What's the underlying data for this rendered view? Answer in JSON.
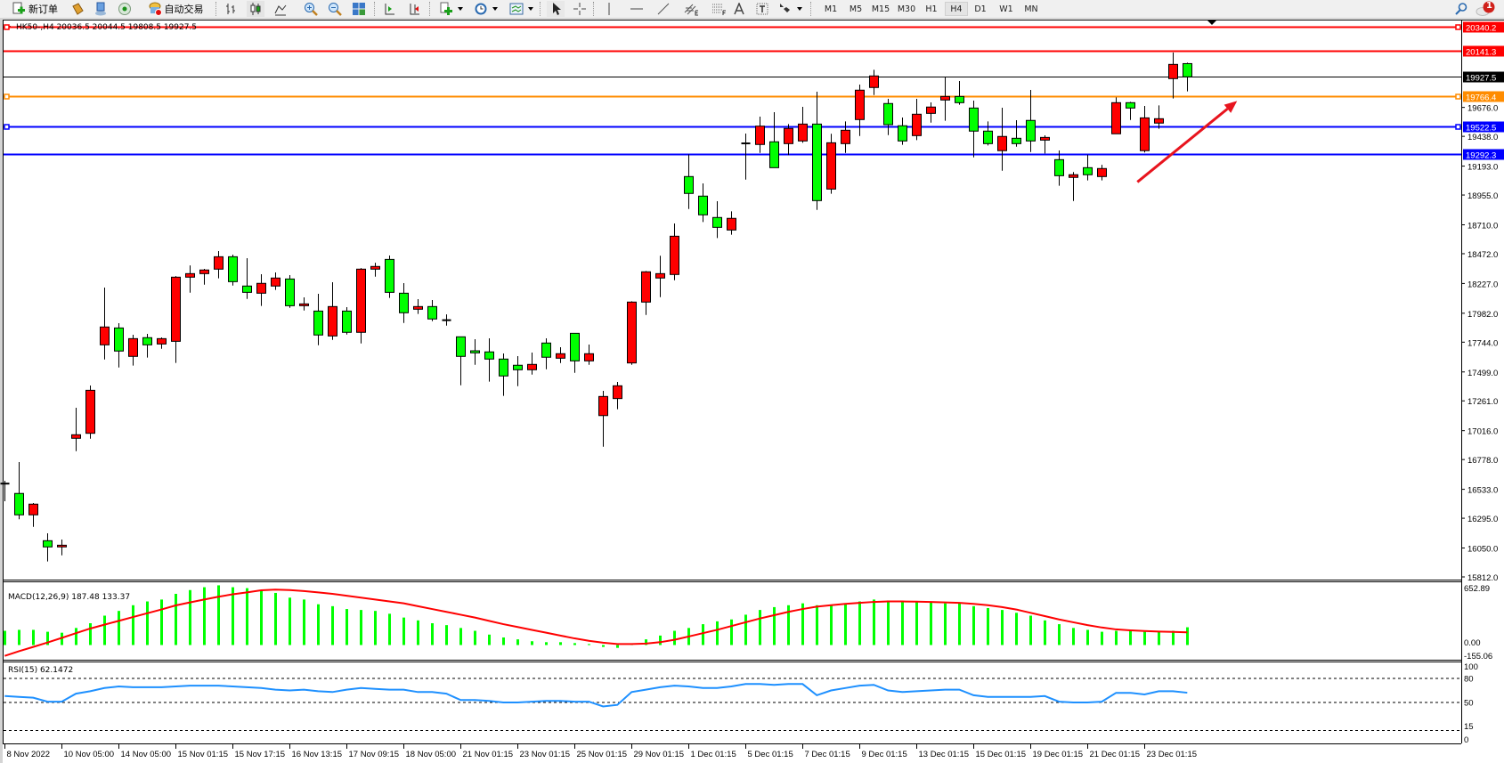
{
  "toolbar": {
    "new_order_label": "新订单",
    "auto_trading_label": "自动交易",
    "icons": [
      "new-order-icon",
      "market-watch-icon",
      "data-window-icon",
      "signals-icon",
      "auto-trading-icon",
      "bar-chart-icon",
      "candlestick-icon",
      "line-chart-icon",
      "zoom-in-icon",
      "zoom-out-icon",
      "tile-windows-icon",
      "auto-scroll-icon",
      "chart-shift-icon",
      "indicators-icon",
      "periods-icon",
      "templates-icon",
      "cursor-icon",
      "crosshair-icon",
      "vertical-line-icon",
      "horizontal-line-icon",
      "trendline-icon",
      "equidistant-channel-icon",
      "fibonacci-icon",
      "text-icon",
      "text-label-icon",
      "arrows-icon",
      "search-icon",
      "notification-icon"
    ],
    "timeframes": [
      "M1",
      "M5",
      "M15",
      "M30",
      "H1",
      "H4",
      "D1",
      "W1",
      "MN"
    ],
    "active_timeframe": "H4",
    "notification_count": "1"
  },
  "chart": {
    "header": "HK50-,H4  20036.5 20044.5 19808.5 19927.5",
    "colors": {
      "bull": "#ff0000",
      "bear": "#00ff00",
      "wick": "#000000",
      "macd_hist": "#00ff00",
      "macd_signal": "#ff0000",
      "rsi": "#1e90ff",
      "arrow": "#e8141e"
    },
    "price_ticks": [
      "19676.0",
      "19438.0",
      "19193.0",
      "18955.0",
      "18710.0",
      "18472.0",
      "18227.0",
      "17982.0",
      "17744.0",
      "17499.0",
      "17261.0",
      "17016.0",
      "16778.0",
      "16533.0",
      "16295.0",
      "16050.0",
      "15812.0"
    ],
    "price_range": [
      15812.0,
      20340.2
    ],
    "horizontal_lines": [
      {
        "price": "20340.2",
        "color": "#ff0000",
        "markers": "both"
      },
      {
        "price": "20141.3",
        "color": "#ff0000",
        "markers": "none"
      },
      {
        "price": "19927.5",
        "color": "#000000",
        "markers": "none",
        "kind": "bid"
      },
      {
        "price": "19766.4",
        "color": "#ff8c00",
        "markers": "both"
      },
      {
        "price": "19522.5",
        "color": "#0000ff",
        "markers": "both"
      },
      {
        "price": "19292.3",
        "color": "#0000ff",
        "markers": "none"
      }
    ],
    "annotation_arrow": {
      "from_bar": 79.5,
      "from_price": 19062,
      "to_bar": 86.5,
      "to_price": 19729,
      "color": "#e8141e"
    },
    "time_labels": [
      {
        "bar": 0,
        "label": "8 Nov 2022"
      },
      {
        "bar": 4,
        "label": "10 Nov 05:00"
      },
      {
        "bar": 8,
        "label": "14 Nov 05:00"
      },
      {
        "bar": 12,
        "label": "15 Nov 01:15"
      },
      {
        "bar": 16,
        "label": "15 Nov 17:15"
      },
      {
        "bar": 20,
        "label": "16 Nov 13:15"
      },
      {
        "bar": 24,
        "label": "17 Nov 09:15"
      },
      {
        "bar": 28,
        "label": "18 Nov 05:00"
      },
      {
        "bar": 32,
        "label": "21 Nov 01:15"
      },
      {
        "bar": 36,
        "label": "23 Nov 01:15"
      },
      {
        "bar": 40,
        "label": "25 Nov 01:15"
      },
      {
        "bar": 44,
        "label": "29 Nov 01:15"
      },
      {
        "bar": 48,
        "label": "1 Dec 01:15"
      },
      {
        "bar": 52,
        "label": "5 Dec 01:15"
      },
      {
        "bar": 56,
        "label": "7 Dec 01:15"
      },
      {
        "bar": 60,
        "label": "9 Dec 01:15"
      },
      {
        "bar": 64,
        "label": "13 Dec 01:15"
      },
      {
        "bar": 68,
        "label": "15 Dec 01:15"
      },
      {
        "bar": 72,
        "label": "19 Dec 01:15"
      },
      {
        "bar": 76,
        "label": "21 Dec 01:15"
      },
      {
        "bar": 80,
        "label": "23 Dec 01:15"
      }
    ]
  },
  "chart_data": [
    {
      "type": "candlestick",
      "symbol": "HK50-",
      "timeframe": "H4",
      "ylim": [
        15812.0,
        20340.2
      ],
      "candles": [
        [
          16580,
          16603,
          16435,
          16576
        ],
        [
          16499,
          16757,
          16286,
          16323
        ],
        [
          16323,
          16420,
          16224,
          16411
        ],
        [
          16110,
          16171,
          15939,
          16059
        ],
        [
          16059,
          16120,
          15990,
          16073
        ],
        [
          16953,
          17204,
          16847,
          16982
        ],
        [
          16994,
          17387,
          16950,
          17348
        ],
        [
          17722,
          18193,
          17602,
          17869
        ],
        [
          17861,
          17900,
          17536,
          17671
        ],
        [
          17627,
          17805,
          17551,
          17773
        ],
        [
          17781,
          17812,
          17617,
          17722
        ],
        [
          17729,
          17783,
          17690,
          17773
        ],
        [
          17751,
          18288,
          17573,
          18279
        ],
        [
          18279,
          18376,
          18151,
          18308
        ],
        [
          18308,
          18347,
          18217,
          18338
        ],
        [
          18345,
          18494,
          18269,
          18447
        ],
        [
          18447,
          18464,
          18210,
          18242
        ],
        [
          18206,
          18435,
          18100,
          18154
        ],
        [
          18147,
          18303,
          18042,
          18228
        ],
        [
          18206,
          18318,
          18174,
          18272
        ],
        [
          18264,
          18296,
          18027,
          18044
        ],
        [
          18044,
          18113,
          18005,
          18059
        ],
        [
          18000,
          18142,
          17719,
          17803
        ],
        [
          17795,
          18237,
          17763,
          18037
        ],
        [
          18000,
          18032,
          17807,
          17825
        ],
        [
          17825,
          18354,
          17734,
          18345
        ],
        [
          18345,
          18398,
          18283,
          18367
        ],
        [
          18425,
          18457,
          18108,
          18154
        ],
        [
          18147,
          18230,
          17902,
          17986
        ],
        [
          18015,
          18098,
          17976,
          18037
        ],
        [
          18037,
          18091,
          17917,
          17935
        ],
        [
          17925,
          17973,
          17880,
          17924
        ],
        [
          17788,
          17788,
          17389,
          17627
        ],
        [
          17673,
          17768,
          17558,
          17656
        ],
        [
          17664,
          17776,
          17419,
          17605
        ],
        [
          17605,
          17651,
          17302,
          17466
        ],
        [
          17554,
          17629,
          17382,
          17517
        ],
        [
          17517,
          17658,
          17477,
          17561
        ],
        [
          17737,
          17776,
          17521,
          17620
        ],
        [
          17612,
          17702,
          17572,
          17649
        ],
        [
          17817,
          17817,
          17492,
          17590
        ],
        [
          17590,
          17724,
          17558,
          17649
        ],
        [
          17140,
          17343,
          16884,
          17297
        ],
        [
          17280,
          17417,
          17192,
          17385
        ],
        [
          17573,
          18081,
          17558,
          18074
        ],
        [
          18074,
          18330,
          17968,
          18323
        ],
        [
          18272,
          18455,
          18115,
          18308
        ],
        [
          18301,
          18721,
          18254,
          18616
        ],
        [
          19107,
          19290,
          18840,
          18968
        ],
        [
          18946,
          19051,
          18733,
          18792
        ],
        [
          18770,
          18904,
          18601,
          18689
        ],
        [
          18667,
          18821,
          18628,
          18763
        ],
        [
          19380,
          19461,
          19082,
          19378
        ],
        [
          19371,
          19600,
          19302,
          19522
        ],
        [
          19393,
          19637,
          19180,
          19180
        ],
        [
          19378,
          19539,
          19283,
          19503
        ],
        [
          19400,
          19681,
          19385,
          19539
        ],
        [
          19539,
          19805,
          18833,
          18909
        ],
        [
          19004,
          19459,
          18965,
          19385
        ],
        [
          19378,
          19561,
          19302,
          19488
        ],
        [
          19576,
          19864,
          19441,
          19818
        ],
        [
          19840,
          19986,
          19778,
          19935
        ],
        [
          19708,
          19747,
          19448,
          19534
        ],
        [
          19525,
          19593,
          19368,
          19400
        ],
        [
          19444,
          19747,
          19407,
          19620
        ],
        [
          19627,
          19717,
          19551,
          19679
        ],
        [
          19737,
          19925,
          19566,
          19766
        ],
        [
          19766,
          19893,
          19698,
          19715
        ],
        [
          19671,
          19732,
          19265,
          19481
        ],
        [
          19481,
          19561,
          19363,
          19378
        ],
        [
          19320,
          19673,
          19155,
          19437
        ],
        [
          19422,
          19571,
          19353,
          19378
        ],
        [
          19569,
          19820,
          19309,
          19400
        ],
        [
          19407,
          19446,
          19297,
          19429
        ],
        [
          19246,
          19322,
          19031,
          19114
        ],
        [
          19100,
          19144,
          18906,
          19122
        ],
        [
          19180,
          19287,
          19075,
          19122
        ],
        [
          19107,
          19204,
          19075,
          19173
        ],
        [
          19459,
          19759,
          19459,
          19715
        ],
        [
          19715,
          19722,
          19573,
          19671
        ],
        [
          19320,
          19688,
          19305,
          19590
        ],
        [
          19547,
          19693,
          19500,
          19583
        ],
        [
          19913,
          20128,
          19749,
          20030
        ],
        [
          20036.5,
          20044.5,
          19808.5,
          19927.5
        ]
      ]
    },
    {
      "type": "bar",
      "title": "MACD(12,26,9) 187.48 133.37",
      "ylim": [
        -155.06,
        652.89
      ],
      "tick_labels": [
        "652.89",
        "0.00",
        "-155.06"
      ],
      "macd": [
        150,
        160,
        160,
        140,
        130,
        180,
        230,
        310,
        360,
        420,
        460,
        480,
        540,
        580,
        610,
        630,
        610,
        600,
        580,
        550,
        500,
        480,
        430,
        410,
        380,
        370,
        360,
        330,
        290,
        260,
        230,
        210,
        180,
        150,
        110,
        80,
        60,
        40,
        30,
        30,
        20,
        10,
        -20,
        -30,
        10,
        60,
        100,
        150,
        180,
        220,
        250,
        270,
        320,
        370,
        400,
        420,
        440,
        420,
        420,
        430,
        460,
        480,
        470,
        460,
        460,
        450,
        440,
        440,
        410,
        390,
        370,
        340,
        310,
        260,
        220,
        180,
        160,
        140,
        150,
        150,
        140,
        140,
        150,
        187.48
      ],
      "signal": [
        -115,
        -65,
        -20,
        26,
        75,
        125,
        174,
        215,
        255,
        295,
        335,
        375,
        418,
        450,
        480,
        510,
        535,
        555,
        578,
        585,
        580,
        570,
        555,
        540,
        520,
        500,
        480,
        460,
        440,
        410,
        380,
        350,
        320,
        290,
        255,
        220,
        190,
        160,
        130,
        100,
        70,
        45,
        25,
        10,
        10,
        15,
        30,
        55,
        90,
        125,
        160,
        200,
        240,
        280,
        315,
        350,
        380,
        405,
        420,
        435,
        445,
        455,
        460,
        460,
        458,
        455,
        450,
        445,
        435,
        420,
        400,
        375,
        340,
        305,
        270,
        240,
        210,
        185,
        165,
        155,
        148,
        142,
        138,
        133.37
      ]
    },
    {
      "type": "line",
      "title": "RSI(15) 62.1472",
      "ylim": [
        0,
        100
      ],
      "tick_labels": [
        "100",
        "80",
        "50",
        "15",
        "0"
      ],
      "levels": [
        80,
        50,
        15
      ],
      "values": [
        58,
        57,
        56,
        51,
        51,
        61,
        64,
        68,
        70,
        69,
        69,
        69,
        70,
        71,
        71,
        71,
        70,
        69,
        68,
        66,
        65,
        66,
        64,
        63,
        66,
        68,
        67,
        66,
        66,
        63,
        63,
        61,
        53,
        53,
        52,
        50,
        50,
        51,
        52,
        52,
        51,
        51,
        45,
        47,
        63,
        66,
        69,
        71,
        70,
        68,
        68,
        70,
        73,
        73,
        72,
        73,
        73,
        59,
        65,
        68,
        71,
        72,
        65,
        63,
        64,
        65,
        66,
        66,
        59,
        57,
        57,
        57,
        57,
        58,
        51,
        50,
        50,
        51,
        62,
        62,
        60,
        64,
        64,
        62.1472
      ]
    }
  ]
}
